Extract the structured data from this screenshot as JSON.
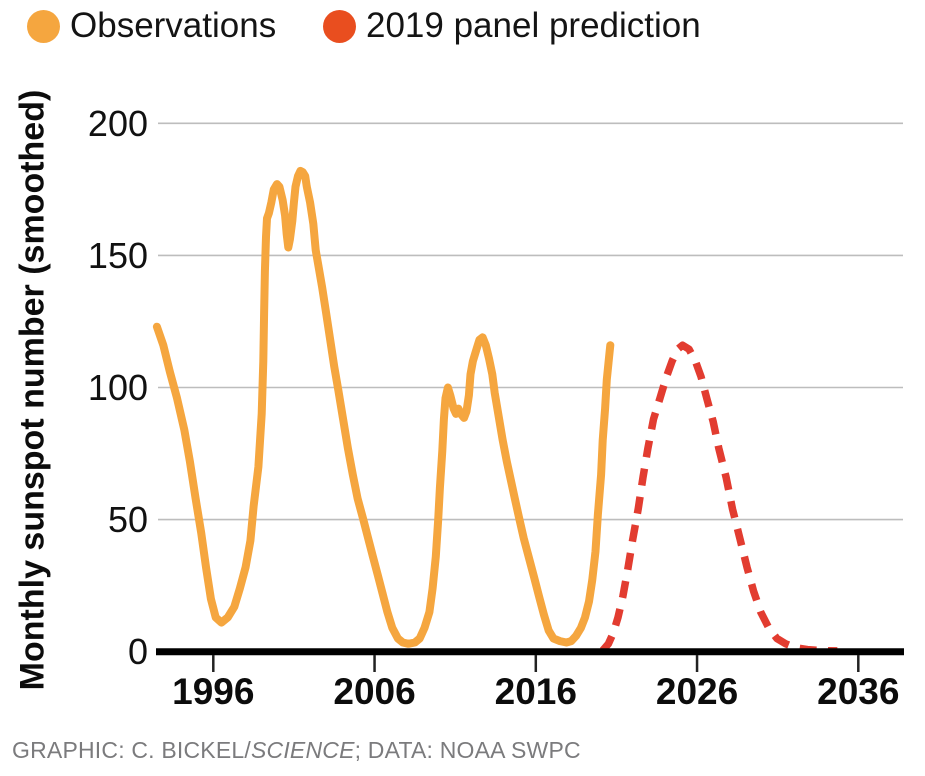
{
  "legend": {
    "items": [
      {
        "label": "Observations",
        "dot_color": "#F5A63F"
      },
      {
        "label": "2019 panel prediction",
        "dot_color": "#E94E1F"
      }
    ]
  },
  "y_axis": {
    "title": "Monthly sunspot number (smoothed)",
    "ticks": [
      0,
      50,
      100,
      150,
      200
    ]
  },
  "x_axis": {
    "ticks": [
      1996,
      2006,
      2016,
      2026,
      2036
    ]
  },
  "caption": {
    "prefix": "GRAPHIC: C. BICKEL/",
    "italic": "SCIENCE",
    "suffix": "; DATA: NOAA SWPC"
  },
  "colors": {
    "observations_line": "#F5A63F",
    "prediction_line": "#E23C30",
    "gridline": "#BDBDBD",
    "axis": "#000000",
    "tick_label": "#111111",
    "caption_text": "#7B7B7D"
  },
  "chart_data": {
    "type": "line",
    "title": "",
    "xlabel": "",
    "ylabel": "Monthly sunspot number (smoothed)",
    "ylim": [
      0,
      210
    ],
    "xlim": [
      1992.5,
      2038.8
    ],
    "grid": true,
    "legend_position": "top-left",
    "x_ticks": [
      1996,
      2006,
      2016,
      2026,
      2036
    ],
    "y_ticks": [
      0,
      50,
      100,
      150,
      200
    ],
    "series": [
      {
        "name": "Observations",
        "color": "#F5A63F",
        "style": "solid",
        "points": [
          [
            1992.5,
            123
          ],
          [
            1992.9,
            116
          ],
          [
            1993.3,
            106
          ],
          [
            1993.75,
            96
          ],
          [
            1994.2,
            84
          ],
          [
            1994.55,
            72
          ],
          [
            1994.9,
            58
          ],
          [
            1995.25,
            45
          ],
          [
            1995.55,
            32
          ],
          [
            1995.85,
            20
          ],
          [
            1996.15,
            13
          ],
          [
            1996.5,
            11
          ],
          [
            1996.9,
            13
          ],
          [
            1997.3,
            17
          ],
          [
            1997.65,
            24
          ],
          [
            1998.0,
            32
          ],
          [
            1998.3,
            42
          ],
          [
            1998.5,
            55
          ],
          [
            1998.8,
            70
          ],
          [
            1999.0,
            90
          ],
          [
            1999.1,
            110
          ],
          [
            1999.15,
            128
          ],
          [
            1999.2,
            144
          ],
          [
            1999.27,
            157
          ],
          [
            1999.33,
            164
          ],
          [
            1999.45,
            166
          ],
          [
            1999.6,
            170
          ],
          [
            1999.75,
            175
          ],
          [
            1999.95,
            177
          ],
          [
            2000.1,
            176
          ],
          [
            2000.3,
            171
          ],
          [
            2000.45,
            165
          ],
          [
            2000.55,
            158
          ],
          [
            2000.65,
            153
          ],
          [
            2000.75,
            156
          ],
          [
            2000.9,
            163
          ],
          [
            2001.0,
            170
          ],
          [
            2001.1,
            176
          ],
          [
            2001.25,
            180
          ],
          [
            2001.4,
            182
          ],
          [
            2001.55,
            181.5
          ],
          [
            2001.7,
            180
          ],
          [
            2001.8,
            176
          ],
          [
            2002.0,
            170
          ],
          [
            2002.2,
            162
          ],
          [
            2002.35,
            152
          ],
          [
            2002.55,
            145
          ],
          [
            2002.75,
            138
          ],
          [
            2003.0,
            128
          ],
          [
            2003.25,
            118
          ],
          [
            2003.5,
            108
          ],
          [
            2003.75,
            99
          ],
          [
            2004.05,
            88
          ],
          [
            2004.35,
            77
          ],
          [
            2004.65,
            67
          ],
          [
            2004.95,
            58
          ],
          [
            2005.3,
            50
          ],
          [
            2005.6,
            43
          ],
          [
            2005.9,
            36
          ],
          [
            2006.2,
            29
          ],
          [
            2006.5,
            22
          ],
          [
            2006.8,
            15
          ],
          [
            2007.1,
            9
          ],
          [
            2007.45,
            5
          ],
          [
            2007.75,
            3.5
          ],
          [
            2008.1,
            3
          ],
          [
            2008.5,
            3.5
          ],
          [
            2008.8,
            5
          ],
          [
            2009.1,
            9
          ],
          [
            2009.4,
            15
          ],
          [
            2009.6,
            24
          ],
          [
            2009.8,
            36
          ],
          [
            2009.95,
            50
          ],
          [
            2010.05,
            62
          ],
          [
            2010.2,
            76
          ],
          [
            2010.3,
            88
          ],
          [
            2010.4,
            96
          ],
          [
            2010.55,
            100
          ],
          [
            2010.7,
            97
          ],
          [
            2010.9,
            92
          ],
          [
            2011.05,
            90
          ],
          [
            2011.2,
            92
          ],
          [
            2011.35,
            90
          ],
          [
            2011.55,
            88.5
          ],
          [
            2011.7,
            91
          ],
          [
            2011.85,
            97
          ],
          [
            2011.95,
            105
          ],
          [
            2012.1,
            110
          ],
          [
            2012.2,
            112
          ],
          [
            2012.35,
            115
          ],
          [
            2012.5,
            118
          ],
          [
            2012.7,
            119
          ],
          [
            2012.9,
            116
          ],
          [
            2013.1,
            111
          ],
          [
            2013.3,
            105
          ],
          [
            2013.45,
            98
          ],
          [
            2013.7,
            89
          ],
          [
            2013.95,
            80
          ],
          [
            2014.2,
            72
          ],
          [
            2014.45,
            65
          ],
          [
            2014.7,
            58
          ],
          [
            2014.95,
            51
          ],
          [
            2015.25,
            43
          ],
          [
            2015.6,
            35
          ],
          [
            2015.9,
            28
          ],
          [
            2016.2,
            21
          ],
          [
            2016.5,
            14
          ],
          [
            2016.8,
            8
          ],
          [
            2017.1,
            5
          ],
          [
            2017.5,
            4
          ],
          [
            2017.9,
            3.5
          ],
          [
            2018.2,
            4
          ],
          [
            2018.5,
            6
          ],
          [
            2018.8,
            9
          ],
          [
            2019.05,
            13
          ],
          [
            2019.3,
            19
          ],
          [
            2019.5,
            27
          ],
          [
            2019.7,
            38
          ],
          [
            2019.85,
            52
          ],
          [
            2020.05,
            67
          ],
          [
            2020.15,
            80
          ],
          [
            2020.3,
            92
          ],
          [
            2020.4,
            103
          ],
          [
            2020.55,
            112
          ],
          [
            2020.62,
            116
          ]
        ]
      },
      {
        "name": "2019 panel prediction",
        "color": "#E23C30",
        "style": "dashed",
        "points": [
          [
            2020.15,
            0.5
          ],
          [
            2020.5,
            3
          ],
          [
            2020.8,
            7
          ],
          [
            2021.1,
            13
          ],
          [
            2021.4,
            21
          ],
          [
            2021.7,
            31
          ],
          [
            2022.0,
            42
          ],
          [
            2022.35,
            54
          ],
          [
            2022.65,
            66
          ],
          [
            2022.95,
            77
          ],
          [
            2023.3,
            88
          ],
          [
            2023.7,
            96
          ],
          [
            2024.1,
            104
          ],
          [
            2024.45,
            110
          ],
          [
            2024.8,
            114.5
          ],
          [
            2025.1,
            116
          ],
          [
            2025.5,
            114.5
          ],
          [
            2025.9,
            110
          ],
          [
            2026.25,
            104
          ],
          [
            2026.6,
            96
          ],
          [
            2027.0,
            87
          ],
          [
            2027.35,
            77
          ],
          [
            2027.8,
            66
          ],
          [
            2028.2,
            54
          ],
          [
            2028.65,
            43
          ],
          [
            2029.1,
            32
          ],
          [
            2029.5,
            23
          ],
          [
            2029.95,
            15
          ],
          [
            2030.45,
            9
          ],
          [
            2030.95,
            5
          ],
          [
            2031.5,
            3
          ],
          [
            2032.1,
            1.5
          ],
          [
            2032.85,
            0.8
          ],
          [
            2033.7,
            0.4
          ],
          [
            2034.7,
            0.3
          ]
        ]
      }
    ]
  }
}
